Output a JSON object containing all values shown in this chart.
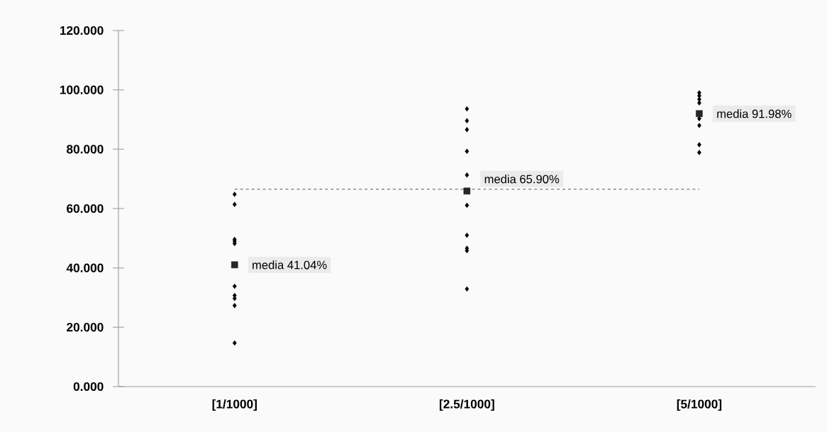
{
  "chart_data": {
    "type": "scatter",
    "categories": [
      "[1/1000]",
      "[2.5/1000]",
      "[5/1000]"
    ],
    "series": [
      {
        "color": "#000000",
        "x": [
          "[1/1000]",
          "[1/1000]",
          "[1/1000]",
          "[1/1000]",
          "[1/1000]",
          "[1/1000]",
          "[1/1000]",
          "[1/1000]",
          "[1/1000]",
          "[1/1000]",
          "[2.5/1000]",
          "[2.5/1000]",
          "[2.5/1000]",
          "[2.5/1000]",
          "[2.5/1000]",
          "[2.5/1000]",
          "[2.5/1000]",
          "[2.5/1000]",
          "[2.5/1000]",
          "[2.5/1000]",
          "[5/1000]",
          "[5/1000]",
          "[5/1000]",
          "[5/1000]",
          "[5/1000]",
          "[5/1000]",
          "[5/1000]",
          "[5/1000]"
        ],
        "values": [
          64.8,
          61.4,
          49.6,
          49.0,
          48.2,
          33.8,
          30.7,
          29.7,
          27.3,
          14.7,
          93.6,
          89.6,
          86.6,
          79.3,
          71.3,
          61.1,
          51.0,
          46.6,
          45.8,
          32.9,
          99.0,
          98.0,
          96.8,
          95.6,
          90.3,
          88.0,
          81.5,
          78.9
        ]
      },
      {
        "color": "#262626",
        "marker": "square",
        "x": [
          "[1/1000]",
          "[2.5/1000]",
          "[5/1000]"
        ],
        "values": [
          41.04,
          65.9,
          91.98
        ],
        "value_labels": [
          "media  41.04%",
          "media 65.90%",
          "media 91.98%"
        ]
      }
    ],
    "marker": "diamond",
    "ylim": [
      0,
      120
    ],
    "yticks": [
      {
        "value": 0,
        "label": "0.000"
      },
      {
        "value": 20,
        "label": "20.000"
      },
      {
        "value": 40,
        "label": "40.000"
      },
      {
        "value": 60,
        "label": "60.000"
      },
      {
        "value": 80,
        "label": "80.000"
      },
      {
        "value": 100,
        "label": "100.000"
      },
      {
        "value": 120,
        "label": "120.000"
      }
    ],
    "ref_lines": [
      {
        "axis": "y",
        "value": 66.5,
        "line_style": "dashed",
        "color": "#000000"
      }
    ],
    "grid": false
  }
}
